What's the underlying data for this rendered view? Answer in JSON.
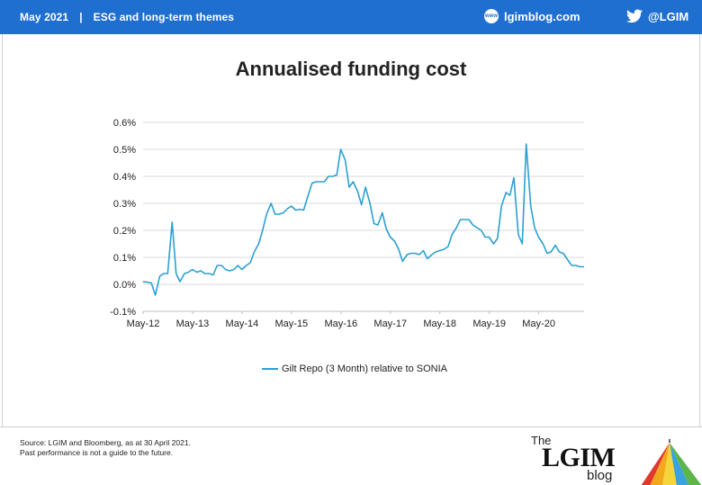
{
  "header": {
    "date": "May 2021",
    "separator": "|",
    "section": "ESG and long-term themes",
    "site_icon": "www-icon",
    "site": "lgimblog.com",
    "social_icon": "twitter-bird-icon",
    "social": "@LGIM"
  },
  "chart_data": {
    "type": "line",
    "title": "Annualised funding cost",
    "xlabel": "",
    "ylabel": "",
    "x_ticks": [
      "May-12",
      "May-13",
      "May-14",
      "May-15",
      "May-16",
      "May-17",
      "May-18",
      "May-19",
      "May-20"
    ],
    "y_ticks": [
      "-0.1%",
      "0.0%",
      "0.1%",
      "0.2%",
      "0.3%",
      "0.4%",
      "0.5%",
      "0.6%"
    ],
    "ylim": [
      -0.1,
      0.6
    ],
    "xlim_years": [
      2012.333,
      2021.25
    ],
    "grid": true,
    "legend_position": "bottom",
    "series": [
      {
        "name": "Gilt Repo (3 Month) relative to SONIA",
        "color": "#2aa0d3",
        "x": [
          2012.33,
          2012.42,
          2012.5,
          2012.58,
          2012.67,
          2012.75,
          2012.83,
          2012.92,
          2013.0,
          2013.08,
          2013.17,
          2013.25,
          2013.33,
          2013.42,
          2013.5,
          2013.58,
          2013.67,
          2013.75,
          2013.83,
          2013.92,
          2014.0,
          2014.08,
          2014.17,
          2014.25,
          2014.33,
          2014.42,
          2014.5,
          2014.58,
          2014.67,
          2014.75,
          2014.83,
          2014.92,
          2015.0,
          2015.08,
          2015.17,
          2015.25,
          2015.33,
          2015.42,
          2015.5,
          2015.58,
          2015.67,
          2015.75,
          2015.83,
          2015.92,
          2016.0,
          2016.08,
          2016.17,
          2016.25,
          2016.33,
          2016.42,
          2016.5,
          2016.58,
          2016.67,
          2016.75,
          2016.83,
          2016.92,
          2017.0,
          2017.08,
          2017.17,
          2017.25,
          2017.33,
          2017.42,
          2017.5,
          2017.58,
          2017.67,
          2017.75,
          2017.83,
          2017.92,
          2018.0,
          2018.08,
          2018.17,
          2018.25,
          2018.33,
          2018.42,
          2018.5,
          2018.58,
          2018.67,
          2018.75,
          2018.83,
          2018.92,
          2019.0,
          2019.08,
          2019.17,
          2019.25,
          2019.33,
          2019.42,
          2019.5,
          2019.58,
          2019.67,
          2019.75,
          2019.83,
          2019.92,
          2020.0,
          2020.08,
          2020.17,
          2020.25,
          2020.33,
          2020.42,
          2020.5,
          2020.58,
          2020.67,
          2020.75,
          2020.83,
          2020.92,
          2021.0,
          2021.08,
          2021.17,
          2021.25
        ],
        "y": [
          0.01,
          0.008,
          0.005,
          -0.04,
          0.03,
          0.04,
          0.04,
          0.23,
          0.04,
          0.01,
          0.04,
          0.045,
          0.055,
          0.045,
          0.05,
          0.04,
          0.04,
          0.035,
          0.07,
          0.07,
          0.055,
          0.05,
          0.055,
          0.07,
          0.055,
          0.07,
          0.08,
          0.12,
          0.15,
          0.2,
          0.26,
          0.3,
          0.26,
          0.26,
          0.265,
          0.28,
          0.29,
          0.275,
          0.278,
          0.275,
          0.33,
          0.375,
          0.38,
          0.38,
          0.38,
          0.4,
          0.4,
          0.405,
          0.5,
          0.46,
          0.36,
          0.38,
          0.345,
          0.295,
          0.36,
          0.3,
          0.225,
          0.22,
          0.265,
          0.205,
          0.175,
          0.16,
          0.13,
          0.085,
          0.11,
          0.115,
          0.115,
          0.11,
          0.125,
          0.095,
          0.11,
          0.12,
          0.125,
          0.13,
          0.14,
          0.185,
          0.21,
          0.24,
          0.24,
          0.24,
          0.22,
          0.21,
          0.2,
          0.175,
          0.175,
          0.15,
          0.17,
          0.29,
          0.34,
          0.33,
          0.395,
          0.185,
          0.15,
          0.52,
          0.29,
          0.21,
          0.175,
          0.15,
          0.115,
          0.12,
          0.145,
          0.12,
          0.115,
          0.09,
          0.07,
          0.07,
          0.065,
          0.065
        ]
      }
    ]
  },
  "footer": {
    "source_line1": "Source: LGIM and Bloomberg, as at 30 April 2021.",
    "source_line2": "Past performance is not a guide to the future.",
    "brand_the": "The",
    "brand_lgim": "LGIM",
    "brand_blog": "blog",
    "brand_icon": "umbrella-logo-icon"
  }
}
